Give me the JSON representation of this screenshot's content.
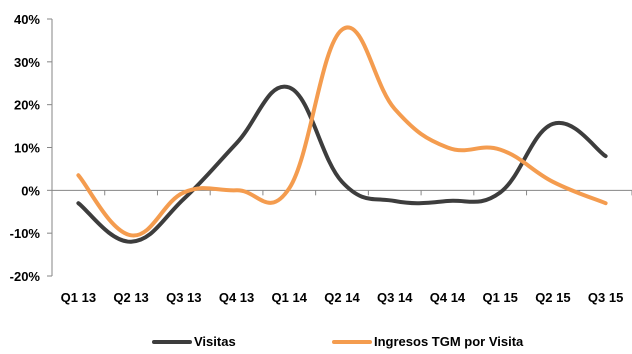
{
  "chart_data": {
    "type": "line",
    "categories": [
      "Q1 13",
      "Q2 13",
      "Q3 13",
      "Q4 13",
      "Q1 14",
      "Q2 14",
      "Q3 14",
      "Q4 14",
      "Q1 15",
      "Q2 15",
      "Q3 15"
    ],
    "series": [
      {
        "name": "Visitas",
        "color": "#3d3d3d",
        "values": [
          -3,
          -12,
          -2,
          11,
          24,
          2,
          -2.5,
          -2.5,
          -0.5,
          15.5,
          8
        ]
      },
      {
        "name": "Ingresos TGM por Visita",
        "color": "#f49c4f",
        "values": [
          3.5,
          -10.5,
          -0.5,
          0,
          0.5,
          37.5,
          19,
          10,
          9.5,
          2,
          -3
        ]
      }
    ],
    "yticks": [
      "40%",
      "30%",
      "20%",
      "10%",
      "0%",
      "-10%",
      "-20%"
    ],
    "ylim": [
      -20,
      40
    ],
    "grid": false,
    "legend_position": "bottom"
  }
}
